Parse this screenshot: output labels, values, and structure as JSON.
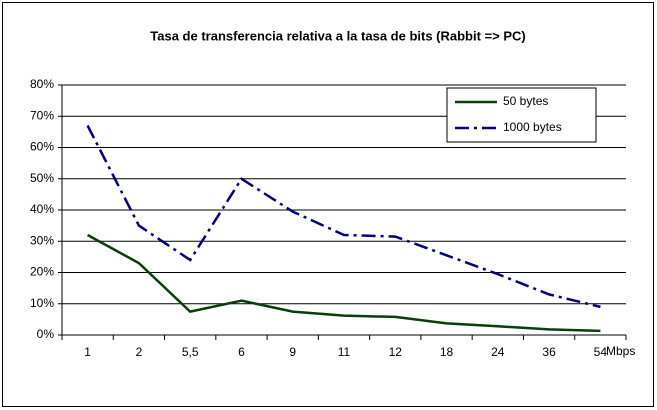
{
  "chart_data": {
    "type": "line",
    "title": "Tasa de transferencia relativa a la tasa de bits (Rabbit => PC)",
    "x_label": "Mbps",
    "categories": [
      "1",
      "2",
      "5,5",
      "6",
      "9",
      "11",
      "12",
      "18",
      "24",
      "36",
      "54"
    ],
    "series": [
      {
        "name": "50 bytes",
        "color": "#0b3d0b",
        "dash": "solid",
        "values": [
          32,
          23,
          7.5,
          11,
          7.5,
          6.2,
          5.8,
          3.7,
          2.8,
          1.8,
          1.3
        ]
      },
      {
        "name": "1000 bytes",
        "color": "#000080",
        "dash": "dash-dot",
        "values": [
          67,
          35,
          24,
          50,
          39.5,
          32,
          31.5,
          25.5,
          19.5,
          13,
          9
        ]
      }
    ],
    "ylim": [
      0,
      80
    ],
    "yticks": [
      {
        "value": 0,
        "label": "0%"
      },
      {
        "value": 10,
        "label": "10%"
      },
      {
        "value": 20,
        "label": "20%"
      },
      {
        "value": 30,
        "label": "30%"
      },
      {
        "value": 40,
        "label": "40%"
      },
      {
        "value": 50,
        "label": "50%"
      },
      {
        "value": 60,
        "label": "60%"
      },
      {
        "value": 70,
        "label": "70%"
      },
      {
        "value": 80,
        "label": "80%"
      }
    ],
    "grid": true,
    "legend": "upper right"
  }
}
